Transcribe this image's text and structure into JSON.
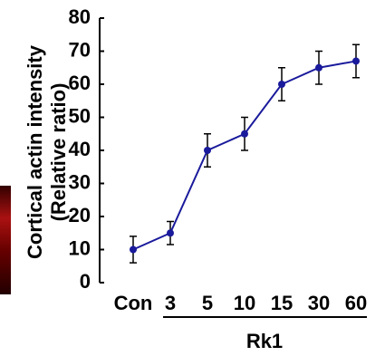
{
  "chart_data": {
    "type": "line",
    "ylabel": "Cortical actin intensity",
    "ylabel2": "(Relative ratio)",
    "categories": [
      "Con",
      "3",
      "5",
      "10",
      "15",
      "30",
      "60"
    ],
    "group_label": "Rk1",
    "values": [
      10,
      15,
      40,
      45,
      60,
      65,
      67
    ],
    "errors": [
      4,
      3.5,
      5,
      5,
      5,
      5,
      5
    ],
    "color": "#1a1a9c",
    "ylim": [
      0,
      80
    ],
    "yticks": [
      0,
      10,
      20,
      30,
      40,
      50,
      60,
      70,
      80
    ],
    "grid": false
  }
}
